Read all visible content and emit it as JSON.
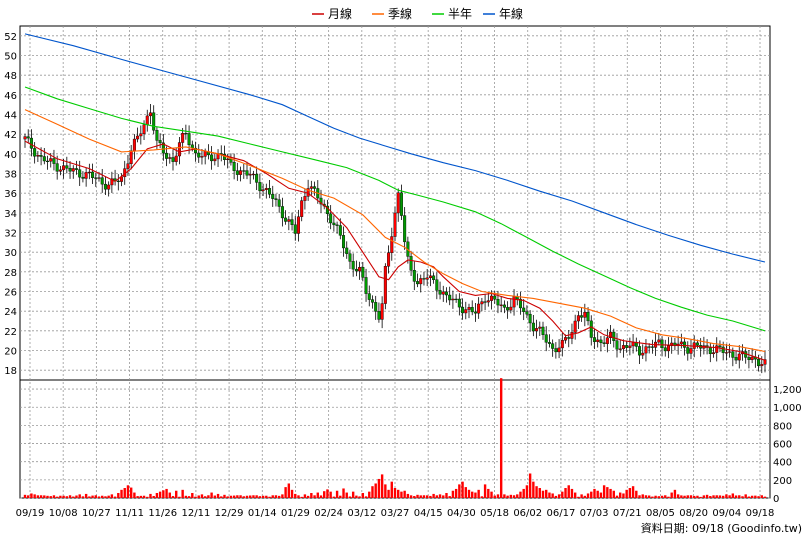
{
  "chart_data": {
    "type": "candlestick",
    "legend": [
      {
        "name": "月線",
        "color": "#cc0000"
      },
      {
        "name": "季線",
        "color": "#ff6600"
      },
      {
        "name": "半年",
        "color": "#00cc00"
      },
      {
        "name": "年線",
        "color": "#0055cc"
      }
    ],
    "legend_placement": "top-center",
    "price_axis": {
      "ticks": [
        "52",
        "50",
        "48",
        "46",
        "44",
        "42",
        "40",
        "38",
        "36",
        "34",
        "32",
        "30",
        "28",
        "26",
        "24",
        "22",
        "20",
        "18"
      ],
      "range": [
        17,
        53
      ],
      "position": "left"
    },
    "volume_axis": {
      "ticks": [
        "1,200",
        "1,000",
        "800",
        "600",
        "400",
        "200",
        "0"
      ],
      "range": [
        0,
        1300
      ],
      "position": "right"
    },
    "x_ticks": [
      "09/19",
      "10/08",
      "10/27",
      "11/11",
      "11/26",
      "12/11",
      "12/29",
      "01/14",
      "01/29",
      "02/24",
      "03/12",
      "03/27",
      "04/15",
      "04/30",
      "05/18",
      "06/02",
      "06/17",
      "07/03",
      "07/21",
      "08/05",
      "08/20",
      "09/04",
      "09/18"
    ],
    "grid": true,
    "up_color": "#ff0000",
    "down_color": "#009900",
    "price_path": [
      [
        0,
        41.5
      ],
      [
        5,
        39.5
      ],
      [
        12,
        38.5
      ],
      [
        20,
        37.8
      ],
      [
        26,
        36.8
      ],
      [
        30,
        37.5
      ],
      [
        33,
        40.5
      ],
      [
        35,
        41.5
      ],
      [
        37,
        43
      ],
      [
        39,
        44.5
      ],
      [
        41,
        41
      ],
      [
        44,
        39.8
      ],
      [
        46,
        39.3
      ],
      [
        48,
        41
      ],
      [
        50,
        42
      ],
      [
        53,
        40
      ],
      [
        57,
        39.6
      ],
      [
        61,
        40
      ],
      [
        64,
        38.7
      ],
      [
        70,
        37.8
      ],
      [
        74,
        36.5
      ],
      [
        77,
        35.5
      ],
      [
        80,
        34
      ],
      [
        82,
        33
      ],
      [
        84,
        32
      ],
      [
        86,
        35
      ],
      [
        88,
        37
      ],
      [
        90,
        36
      ],
      [
        92,
        35
      ],
      [
        95,
        33.5
      ],
      [
        98,
        31.5
      ],
      [
        101,
        29
      ],
      [
        104,
        28
      ],
      [
        106,
        26
      ],
      [
        108,
        24.8
      ],
      [
        110,
        23.5
      ],
      [
        111,
        24.5
      ],
      [
        112,
        28
      ],
      [
        113,
        30
      ],
      [
        114,
        32
      ],
      [
        115,
        34
      ],
      [
        116,
        36
      ],
      [
        117,
        34
      ],
      [
        118,
        31
      ],
      [
        119,
        29
      ],
      [
        120,
        28
      ],
      [
        122,
        27
      ],
      [
        125,
        27.5
      ],
      [
        128,
        26.5
      ],
      [
        131,
        25.5
      ],
      [
        134,
        24.8
      ],
      [
        137,
        24.2
      ],
      [
        140,
        23.8
      ],
      [
        143,
        25.5
      ],
      [
        146,
        25
      ],
      [
        149,
        24.2
      ],
      [
        152,
        25.2
      ],
      [
        155,
        24
      ],
      [
        158,
        22.5
      ],
      [
        161,
        21.5
      ],
      [
        164,
        20.2
      ],
      [
        167,
        20.5
      ],
      [
        170,
        22
      ],
      [
        172,
        23.8
      ],
      [
        174,
        23.5
      ],
      [
        176,
        21.5
      ],
      [
        179,
        20.8
      ],
      [
        182,
        21.3
      ],
      [
        185,
        20.3
      ],
      [
        188,
        20.5
      ],
      [
        191,
        20
      ],
      [
        194,
        20.3
      ],
      [
        197,
        20.7
      ],
      [
        200,
        20.4
      ],
      [
        203,
        20.6
      ],
      [
        206,
        20.3
      ],
      [
        209,
        20.4
      ],
      [
        212,
        20.2
      ],
      [
        215,
        20.1
      ],
      [
        218,
        19.8
      ],
      [
        221,
        19.5
      ],
      [
        224,
        19.3
      ],
      [
        227,
        19.2
      ],
      [
        229,
        18.6
      ],
      [
        230,
        18.5
      ]
    ],
    "ma_month": [
      [
        0,
        41.3
      ],
      [
        10,
        39.5
      ],
      [
        20,
        38.5
      ],
      [
        28,
        37.2
      ],
      [
        33,
        38.5
      ],
      [
        38,
        40.5
      ],
      [
        43,
        41
      ],
      [
        48,
        40.2
      ],
      [
        53,
        40.5
      ],
      [
        60,
        40
      ],
      [
        68,
        39.3
      ],
      [
        75,
        38
      ],
      [
        82,
        36.5
      ],
      [
        88,
        36
      ],
      [
        94,
        34.5
      ],
      [
        100,
        32.5
      ],
      [
        105,
        30
      ],
      [
        110,
        27.5
      ],
      [
        113,
        27.2
      ],
      [
        116,
        28.5
      ],
      [
        119,
        29.2
      ],
      [
        123,
        29
      ],
      [
        127,
        28.5
      ],
      [
        130,
        27.5
      ],
      [
        135,
        26
      ],
      [
        140,
        25.6
      ],
      [
        145,
        25.8
      ],
      [
        150,
        25.3
      ],
      [
        155,
        25.1
      ],
      [
        160,
        24.3
      ],
      [
        164,
        23
      ],
      [
        168,
        21.5
      ],
      [
        172,
        21.8
      ],
      [
        176,
        22.4
      ],
      [
        180,
        21.6
      ],
      [
        186,
        21
      ],
      [
        195,
        20.6
      ],
      [
        205,
        20.5
      ],
      [
        215,
        20.3
      ],
      [
        222,
        19.9
      ],
      [
        230,
        19
      ]
    ],
    "ma_quarter": [
      [
        0,
        44.5
      ],
      [
        10,
        43
      ],
      [
        20,
        41.5
      ],
      [
        30,
        40.2
      ],
      [
        40,
        40.4
      ],
      [
        50,
        40.7
      ],
      [
        60,
        40
      ],
      [
        70,
        38.8
      ],
      [
        80,
        37.5
      ],
      [
        88,
        36.3
      ],
      [
        96,
        35.5
      ],
      [
        105,
        33.8
      ],
      [
        112,
        31.5
      ],
      [
        118,
        30.5
      ],
      [
        124,
        29
      ],
      [
        130,
        27.8
      ],
      [
        136,
        26.8
      ],
      [
        142,
        26
      ],
      [
        150,
        25.6
      ],
      [
        158,
        25.3
      ],
      [
        166,
        24.8
      ],
      [
        174,
        24.3
      ],
      [
        182,
        23.5
      ],
      [
        190,
        22.3
      ],
      [
        198,
        21.6
      ],
      [
        206,
        21.2
      ],
      [
        214,
        20.7
      ],
      [
        222,
        20.4
      ],
      [
        230,
        19.9
      ]
    ],
    "ma_half": [
      [
        0,
        46.8
      ],
      [
        10,
        45.6
      ],
      [
        20,
        44.6
      ],
      [
        30,
        43.6
      ],
      [
        40,
        42.8
      ],
      [
        50,
        42.3
      ],
      [
        60,
        41.8
      ],
      [
        70,
        41
      ],
      [
        80,
        40.2
      ],
      [
        90,
        39.4
      ],
      [
        100,
        38.6
      ],
      [
        110,
        37.3
      ],
      [
        116,
        36.3
      ],
      [
        122,
        35.8
      ],
      [
        130,
        35.1
      ],
      [
        140,
        34.1
      ],
      [
        148,
        32.9
      ],
      [
        156,
        31.5
      ],
      [
        164,
        30.1
      ],
      [
        172,
        28.8
      ],
      [
        180,
        27.6
      ],
      [
        188,
        26.4
      ],
      [
        196,
        25.3
      ],
      [
        204,
        24.4
      ],
      [
        212,
        23.6
      ],
      [
        220,
        23
      ],
      [
        226,
        22.4
      ],
      [
        230,
        22
      ]
    ],
    "ma_year": [
      [
        0,
        52.2
      ],
      [
        15,
        51
      ],
      [
        30,
        49.6
      ],
      [
        50,
        47.8
      ],
      [
        70,
        46
      ],
      [
        80,
        45
      ],
      [
        88,
        43.8
      ],
      [
        96,
        42.6
      ],
      [
        104,
        41.6
      ],
      [
        112,
        40.8
      ],
      [
        120,
        40
      ],
      [
        130,
        39.1
      ],
      [
        140,
        38.3
      ],
      [
        150,
        37.3
      ],
      [
        160,
        36.2
      ],
      [
        170,
        35.2
      ],
      [
        180,
        34
      ],
      [
        190,
        32.8
      ],
      [
        200,
        31.7
      ],
      [
        210,
        30.7
      ],
      [
        220,
        29.8
      ],
      [
        230,
        29
      ]
    ],
    "volume_spikes": [
      [
        0,
        35
      ],
      [
        2,
        50
      ],
      [
        3,
        40
      ],
      [
        5,
        30
      ],
      [
        11,
        25
      ],
      [
        14,
        30
      ],
      [
        17,
        40
      ],
      [
        19,
        45
      ],
      [
        22,
        30
      ],
      [
        24,
        25
      ],
      [
        27,
        40
      ],
      [
        29,
        55
      ],
      [
        30,
        90
      ],
      [
        31,
        110
      ],
      [
        32,
        140
      ],
      [
        33,
        115
      ],
      [
        34,
        60
      ],
      [
        37,
        25
      ],
      [
        39,
        45
      ],
      [
        41,
        55
      ],
      [
        42,
        70
      ],
      [
        43,
        85
      ],
      [
        44,
        100
      ],
      [
        45,
        60
      ],
      [
        47,
        80
      ],
      [
        49,
        90
      ],
      [
        52,
        55
      ],
      [
        55,
        40
      ],
      [
        58,
        60
      ],
      [
        60,
        45
      ],
      [
        62,
        35
      ],
      [
        64,
        25
      ],
      [
        66,
        30
      ],
      [
        69,
        25
      ],
      [
        71,
        30
      ],
      [
        75,
        25
      ],
      [
        78,
        30
      ],
      [
        80,
        40
      ],
      [
        81,
        120
      ],
      [
        82,
        160
      ],
      [
        83,
        90
      ],
      [
        84,
        45
      ],
      [
        87,
        40
      ],
      [
        89,
        55
      ],
      [
        91,
        60
      ],
      [
        93,
        75
      ],
      [
        94,
        95
      ],
      [
        95,
        70
      ],
      [
        97,
        80
      ],
      [
        99,
        105
      ],
      [
        100,
        60
      ],
      [
        102,
        70
      ],
      [
        105,
        55
      ],
      [
        107,
        70
      ],
      [
        108,
        130
      ],
      [
        109,
        160
      ],
      [
        110,
        210
      ],
      [
        111,
        260
      ],
      [
        112,
        150
      ],
      [
        113,
        90
      ],
      [
        114,
        180
      ],
      [
        115,
        110
      ],
      [
        116,
        90
      ],
      [
        117,
        70
      ],
      [
        118,
        80
      ],
      [
        119,
        45
      ],
      [
        122,
        35
      ],
      [
        124,
        30
      ],
      [
        127,
        45
      ],
      [
        129,
        40
      ],
      [
        131,
        55
      ],
      [
        133,
        80
      ],
      [
        134,
        100
      ],
      [
        135,
        150
      ],
      [
        136,
        180
      ],
      [
        137,
        120
      ],
      [
        138,
        90
      ],
      [
        139,
        70
      ],
      [
        140,
        60
      ],
      [
        141,
        90
      ],
      [
        143,
        150
      ],
      [
        144,
        100
      ],
      [
        145,
        70
      ],
      [
        147,
        40
      ],
      [
        148,
        1320
      ],
      [
        149,
        40
      ],
      [
        151,
        35
      ],
      [
        152,
        30
      ],
      [
        153,
        40
      ],
      [
        154,
        70
      ],
      [
        155,
        100
      ],
      [
        156,
        140
      ],
      [
        157,
        270
      ],
      [
        158,
        180
      ],
      [
        159,
        130
      ],
      [
        160,
        110
      ],
      [
        161,
        80
      ],
      [
        162,
        90
      ],
      [
        163,
        60
      ],
      [
        164,
        50
      ],
      [
        166,
        40
      ],
      [
        167,
        70
      ],
      [
        168,
        110
      ],
      [
        169,
        140
      ],
      [
        170,
        100
      ],
      [
        171,
        60
      ],
      [
        173,
        40
      ],
      [
        175,
        50
      ],
      [
        176,
        70
      ],
      [
        177,
        100
      ],
      [
        178,
        80
      ],
      [
        179,
        60
      ],
      [
        180,
        140
      ],
      [
        181,
        120
      ],
      [
        182,
        100
      ],
      [
        183,
        80
      ],
      [
        185,
        60
      ],
      [
        186,
        50
      ],
      [
        187,
        90
      ],
      [
        188,
        110
      ],
      [
        189,
        130
      ],
      [
        190,
        80
      ],
      [
        192,
        40
      ],
      [
        193,
        30
      ],
      [
        196,
        25
      ],
      [
        199,
        30
      ],
      [
        201,
        60
      ],
      [
        202,
        90
      ],
      [
        203,
        40
      ],
      [
        205,
        25
      ],
      [
        207,
        30
      ],
      [
        209,
        25
      ],
      [
        212,
        35
      ],
      [
        215,
        30
      ],
      [
        218,
        40
      ],
      [
        220,
        50
      ],
      [
        222,
        30
      ],
      [
        224,
        40
      ],
      [
        226,
        25
      ],
      [
        228,
        20
      ],
      [
        230,
        15
      ]
    ],
    "footer": "資料日期: 09/18 (Goodinfo.tw)"
  }
}
